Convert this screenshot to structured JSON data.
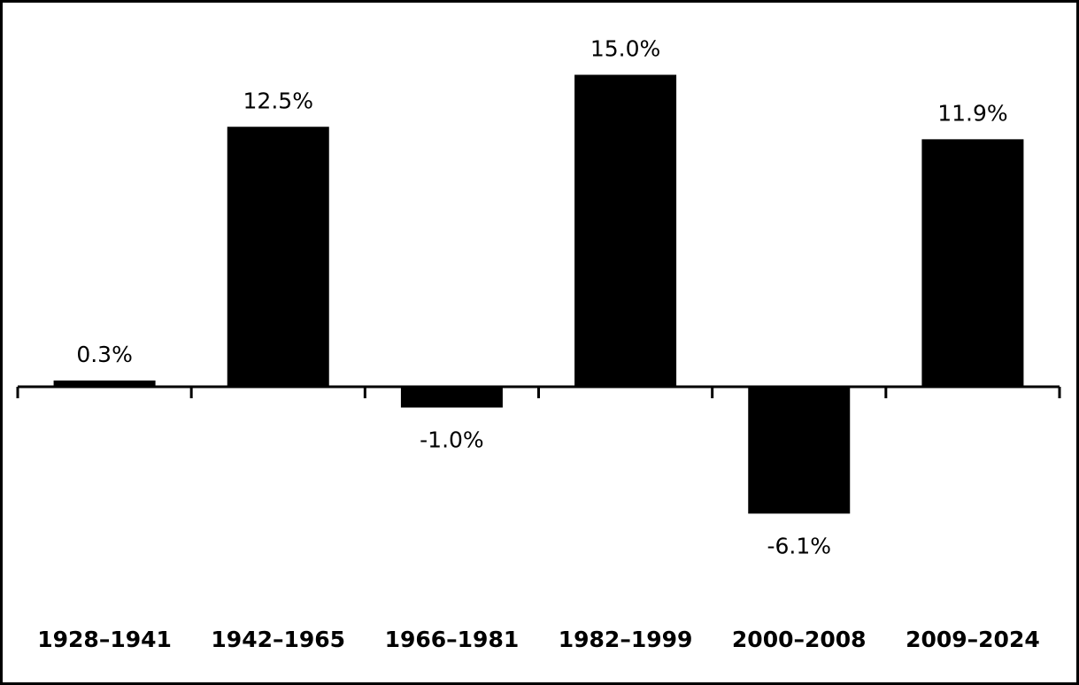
{
  "chart_data": {
    "type": "bar",
    "categories": [
      "1928–1941",
      "1942–1965",
      "1966–1981",
      "1982–1999",
      "2000–2008",
      "2009–2024"
    ],
    "values": [
      0.3,
      12.5,
      -1.0,
      15.0,
      -6.1,
      11.9
    ],
    "value_labels": [
      "0.3%",
      "12.5%",
      "-1.0%",
      "15.0%",
      "-6.1%",
      "11.9%"
    ],
    "color": "#000000"
  }
}
